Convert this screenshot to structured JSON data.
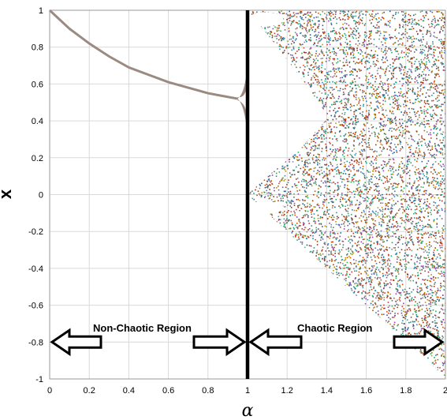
{
  "chart_data": {
    "type": "scatter",
    "title": "",
    "xlabel": "α",
    "ylabel": "x",
    "xlim": [
      0,
      2
    ],
    "ylim": [
      -1,
      1
    ],
    "grid": true,
    "xticks": [
      "0",
      "0.2",
      "0.4",
      "0.6",
      "0.8",
      "1",
      "1.2",
      "1.4",
      "1.6",
      "1.8",
      "2"
    ],
    "yticks": [
      "1",
      "0.8",
      "0.6",
      "0.4",
      "0.2",
      "0",
      "-0.2",
      "-0.4",
      "-0.6",
      "-0.8",
      "-1"
    ],
    "series": [
      {
        "x": [
          0.0,
          0.1,
          0.2,
          0.3,
          0.4,
          0.5,
          0.6,
          0.7,
          0.8,
          0.9,
          0.95
        ],
        "y": [
          1.0,
          0.9,
          0.82,
          0.75,
          0.69,
          0.65,
          0.61,
          0.58,
          0.55,
          0.53,
          0.52
        ]
      }
    ],
    "boundary_alpha": 1,
    "annotations": [
      {
        "text": "Non-Chaotic Region"
      },
      {
        "text": "Chaotic Region"
      }
    ],
    "colors": {
      "line": "#9b8a80",
      "boundary": "#000000"
    }
  }
}
